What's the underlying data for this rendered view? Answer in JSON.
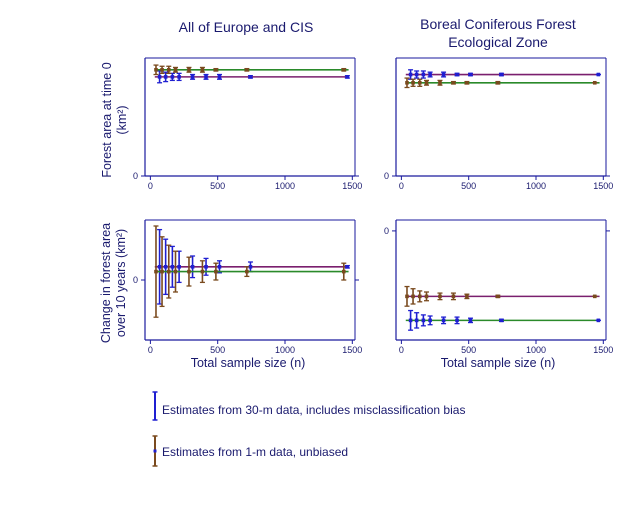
{
  "colors": {
    "blue": "#1f1fd1",
    "brown": "#7a4a1e",
    "green": "#2a8a2a",
    "purple": "#7a1f6e",
    "axis": "#1a1a9e",
    "text": "#1a1a6e"
  },
  "panel_titles": {
    "left": "All of Europe and CIS",
    "right_line1": "Boreal Coniferous Forest",
    "right_line2": "Ecological Zone"
  },
  "ylabels": {
    "top_line1": "Forest area at time 0",
    "top_line2": "(km²)",
    "bottom_line1": "Change in forest area",
    "bottom_line2": "over 10 years (km²)"
  },
  "xlabel": "Total sample size (n)",
  "legend": {
    "blue_label": "Estimates from 30-m data, includes misclassification bias",
    "brown_label": "Estimates from 1-m data, unbiased"
  },
  "chart_data": [
    {
      "type": "scatter",
      "panel": "top-left",
      "title": "All of Europe and CIS",
      "ylabel": "Forest area at time 0 (km²)",
      "xlabel": "",
      "xlim": [
        -40,
        1520
      ],
      "ylim": [
        0,
        1
      ],
      "xticks": [
        0,
        500,
        1000,
        1500
      ],
      "yticks": [
        0
      ],
      "ytick_labels": [
        "0"
      ],
      "x": [
        55,
        100,
        150,
        200,
        300,
        400,
        500,
        730,
        1450
      ],
      "series": [
        {
          "name": "Estimates from 30-m data, includes misclassification bias",
          "color": "blue",
          "values": [
            0.84,
            0.84,
            0.84,
            0.84,
            0.84,
            0.84,
            0.84,
            0.84,
            0.84
          ],
          "lower": [
            0.79,
            0.8,
            0.81,
            0.81,
            0.82,
            0.82,
            0.82,
            0.83,
            0.83
          ],
          "upper": [
            0.89,
            0.88,
            0.87,
            0.87,
            0.86,
            0.86,
            0.86,
            0.85,
            0.85
          ],
          "reference": 0.84
        },
        {
          "name": "Estimates from 1-m data, unbiased",
          "color": "brown",
          "values": [
            0.9,
            0.9,
            0.9,
            0.9,
            0.9,
            0.9,
            0.9,
            0.9,
            0.9
          ],
          "lower": [
            0.86,
            0.87,
            0.87,
            0.88,
            0.88,
            0.88,
            0.89,
            0.89,
            0.89
          ],
          "upper": [
            0.94,
            0.93,
            0.93,
            0.92,
            0.92,
            0.92,
            0.91,
            0.91,
            0.91
          ],
          "reference": 0.9
        }
      ]
    },
    {
      "type": "scatter",
      "panel": "top-right",
      "title": "Boreal Coniferous Forest Ecological Zone",
      "ylabel": "",
      "xlabel": "",
      "xlim": [
        -40,
        1520
      ],
      "ylim": [
        0,
        1
      ],
      "xticks": [
        0,
        500,
        1000,
        1500
      ],
      "yticks": [
        0
      ],
      "ytick_labels": [
        "0"
      ],
      "x": [
        55,
        100,
        150,
        200,
        300,
        400,
        500,
        730,
        1450
      ],
      "series": [
        {
          "name": "Estimates from 30-m data, includes misclassification bias",
          "color": "blue",
          "values": [
            0.86,
            0.86,
            0.86,
            0.86,
            0.86,
            0.86,
            0.86,
            0.86,
            0.86
          ],
          "lower": [
            0.82,
            0.83,
            0.83,
            0.84,
            0.84,
            0.85,
            0.85,
            0.85,
            0.86
          ],
          "upper": [
            0.9,
            0.89,
            0.89,
            0.88,
            0.88,
            0.87,
            0.87,
            0.87,
            0.86
          ],
          "reference": 0.86
        },
        {
          "name": "Estimates from 1-m data, unbiased",
          "color": "brown",
          "values": [
            0.79,
            0.79,
            0.79,
            0.79,
            0.79,
            0.79,
            0.79,
            0.79,
            0.79
          ],
          "lower": [
            0.75,
            0.76,
            0.76,
            0.77,
            0.77,
            0.78,
            0.78,
            0.78,
            0.79
          ],
          "upper": [
            0.83,
            0.82,
            0.82,
            0.81,
            0.81,
            0.8,
            0.8,
            0.8,
            0.79
          ],
          "reference": 0.79
        }
      ]
    },
    {
      "type": "scatter",
      "panel": "bottom-left",
      "title": "",
      "ylabel": "Change in forest area over 10 years (km²)",
      "xlabel": "Total sample size (n)",
      "xlim": [
        -40,
        1520
      ],
      "ylim": [
        -1,
        1
      ],
      "xticks": [
        0,
        500,
        1000,
        1500
      ],
      "yticks": [
        0
      ],
      "ytick_labels": [
        "0"
      ],
      "x": [
        55,
        100,
        150,
        200,
        300,
        400,
        500,
        730,
        1450
      ],
      "series": [
        {
          "name": "Estimates from 30-m data, includes misclassification bias",
          "color": "blue",
          "values": [
            0.22,
            0.22,
            0.22,
            0.22,
            0.22,
            0.22,
            0.22,
            0.22,
            0.22
          ],
          "lower": [
            -0.4,
            -0.24,
            -0.12,
            -0.04,
            0.04,
            0.08,
            0.12,
            0.14,
            0.2
          ],
          "upper": [
            0.84,
            0.68,
            0.56,
            0.48,
            0.4,
            0.36,
            0.32,
            0.3,
            0.24
          ],
          "reference": 0.22
        },
        {
          "name": "Estimates from 1-m data, unbiased",
          "color": "brown",
          "values": [
            0.14,
            0.14,
            0.14,
            0.14,
            0.14,
            0.14,
            0.14,
            0.14,
            0.14
          ],
          "lower": [
            -0.62,
            -0.44,
            -0.3,
            -0.2,
            -0.1,
            -0.04,
            0,
            0.06,
            0
          ],
          "upper": [
            0.9,
            0.72,
            0.58,
            0.48,
            0.38,
            0.32,
            0.28,
            0.22,
            0.28
          ],
          "reference": 0.14
        }
      ]
    },
    {
      "type": "scatter",
      "panel": "bottom-right",
      "title": "",
      "ylabel": "",
      "xlabel": "Total sample size (n)",
      "xlim": [
        -40,
        1520
      ],
      "ylim": [
        -1,
        0.1
      ],
      "xticks": [
        0,
        500,
        1000,
        1500
      ],
      "yticks": [
        0
      ],
      "ytick_labels": [
        "0"
      ],
      "x": [
        55,
        100,
        150,
        200,
        300,
        400,
        500,
        730,
        1450
      ],
      "series": [
        {
          "name": "Estimates from 30-m data, includes misclassification bias",
          "color": "blue",
          "values": [
            -0.82,
            -0.82,
            -0.82,
            -0.82,
            -0.82,
            -0.82,
            -0.82,
            -0.82,
            -0.82
          ],
          "lower": [
            -0.91,
            -0.89,
            -0.87,
            -0.86,
            -0.85,
            -0.85,
            -0.84,
            -0.83,
            -0.82
          ],
          "upper": [
            -0.73,
            -0.75,
            -0.77,
            -0.78,
            -0.79,
            -0.79,
            -0.8,
            -0.81,
            -0.82
          ],
          "reference": -0.82
        },
        {
          "name": "Estimates from 1-m data, unbiased",
          "color": "brown",
          "values": [
            -0.6,
            -0.6,
            -0.6,
            -0.6,
            -0.6,
            -0.6,
            -0.6,
            -0.6,
            -0.6
          ],
          "lower": [
            -0.69,
            -0.67,
            -0.65,
            -0.64,
            -0.63,
            -0.63,
            -0.62,
            -0.61,
            -0.6
          ],
          "upper": [
            -0.51,
            -0.53,
            -0.55,
            -0.56,
            -0.57,
            -0.57,
            -0.58,
            -0.59,
            -0.6
          ],
          "reference": -0.6
        }
      ]
    }
  ]
}
